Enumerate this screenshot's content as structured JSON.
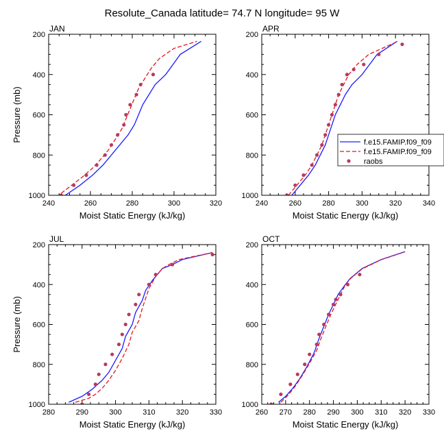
{
  "figure": {
    "title": "Resolute_Canada  latitude= 74.7 N longitude= 95 W"
  },
  "colors": {
    "model_a": "#1a1aff",
    "model_b": "#e0161d",
    "raobs": "#b83a5e"
  },
  "legend": {
    "entries": [
      "f.e15.FAMIP.f09_f09",
      "f.e15.FAMIP.f09_f09",
      "raobs"
    ],
    "placement": "right of APR panel"
  },
  "chart_data": [
    {
      "type": "line",
      "title": "JAN",
      "xlabel": "Moist Static Energy (kJ/kg)",
      "ylabel": "Pressure (mb)",
      "xlim": [
        240,
        320
      ],
      "ylim": [
        1000,
        200
      ],
      "y_inverted": true,
      "xticks": [
        240,
        260,
        280,
        300,
        320
      ],
      "yticks": [
        200,
        400,
        600,
        800,
        1000
      ],
      "series": [
        {
          "name": "f.e15.FAMIP.f09_f09",
          "style": "solid",
          "x": [
            248,
            255,
            261,
            266,
            270,
            274,
            278,
            281,
            283,
            285,
            288,
            291,
            296,
            303,
            313
          ],
          "y": [
            1000,
            950,
            900,
            850,
            800,
            750,
            700,
            650,
            600,
            550,
            500,
            450,
            400,
            300,
            235
          ]
        },
        {
          "name": "f.e15.FAMIP.f09_f09",
          "style": "dashed",
          "x": [
            246,
            251,
            256,
            261,
            265,
            269,
            272,
            275,
            277,
            279,
            281,
            283,
            286,
            289,
            293,
            300,
            311
          ],
          "y": [
            990,
            950,
            910,
            865,
            820,
            770,
            720,
            670,
            620,
            570,
            520,
            470,
            420,
            370,
            320,
            270,
            235
          ]
        },
        {
          "name": "raobs",
          "style": "markers",
          "x": [
            246,
            252,
            258,
            263,
            267,
            270,
            273,
            276,
            277,
            279,
            282,
            284,
            290
          ],
          "y": [
            1000,
            950,
            900,
            850,
            800,
            750,
            700,
            650,
            600,
            550,
            500,
            450,
            400
          ]
        }
      ]
    },
    {
      "type": "line",
      "title": "APR",
      "xlabel": "Moist Static Energy (kJ/kg)",
      "ylabel": "",
      "xlim": [
        240,
        340
      ],
      "ylim": [
        1000,
        200
      ],
      "y_inverted": true,
      "xticks": [
        240,
        260,
        280,
        300,
        320,
        340
      ],
      "yticks": [
        200,
        400,
        600,
        800,
        1000
      ],
      "series": [
        {
          "name": "f.e15.FAMIP.f09_f09",
          "style": "solid",
          "x": [
            258,
            263,
            268,
            272,
            275,
            278,
            280,
            282,
            284,
            287,
            290,
            294,
            300,
            309,
            321
          ],
          "y": [
            1000,
            950,
            900,
            850,
            800,
            750,
            700,
            650,
            600,
            550,
            500,
            450,
            400,
            300,
            235
          ]
        },
        {
          "name": "f.e15.FAMIP.f09_f09",
          "style": "dashed",
          "x": [
            256,
            261,
            266,
            270,
            273,
            276,
            278,
            280,
            282,
            284,
            286,
            289,
            292,
            297,
            304,
            312,
            320
          ],
          "y": [
            1000,
            950,
            900,
            850,
            800,
            750,
            700,
            650,
            600,
            550,
            500,
            450,
            400,
            350,
            300,
            270,
            240
          ]
        },
        {
          "name": "raobs",
          "style": "markers",
          "x": [
            255,
            260,
            265,
            270,
            273,
            276,
            278,
            280,
            282,
            284,
            286,
            288,
            291,
            295,
            301,
            310,
            324
          ],
          "y": [
            1000,
            950,
            900,
            850,
            800,
            750,
            700,
            650,
            600,
            550,
            500,
            450,
            400,
            375,
            350,
            300,
            250
          ]
        }
      ]
    },
    {
      "type": "line",
      "title": "JUL",
      "xlabel": "Moist Static Energy (kJ/kg)",
      "ylabel": "Pressure (mb)",
      "xlim": [
        280,
        330
      ],
      "ylim": [
        1000,
        200
      ],
      "y_inverted": true,
      "xticks": [
        280,
        290,
        300,
        310,
        320,
        330
      ],
      "yticks": [
        200,
        400,
        600,
        800,
        1000
      ],
      "series": [
        {
          "name": "f.e15.FAMIP.f09_f09",
          "style": "solid",
          "x": [
            286,
            290,
            293,
            296,
            298,
            300,
            302,
            303,
            305,
            306,
            308,
            309,
            311,
            313,
            314,
            317,
            320,
            329
          ],
          "y": [
            990,
            960,
            925,
            880,
            840,
            780,
            720,
            660,
            600,
            540,
            480,
            430,
            380,
            340,
            320,
            300,
            275,
            240
          ]
        },
        {
          "name": "f.e15.FAMIP.f09_f09",
          "style": "dashed",
          "x": [
            288,
            292,
            294,
            296,
            298,
            300,
            302,
            304,
            305,
            307,
            308,
            309,
            310,
            312,
            314,
            316,
            319,
            329
          ],
          "y": [
            990,
            970,
            950,
            920,
            880,
            830,
            770,
            700,
            640,
            580,
            520,
            470,
            420,
            360,
            320,
            300,
            275,
            240
          ]
        },
        {
          "name": "raobs",
          "style": "markers",
          "x": [
            290,
            292,
            294,
            295,
            297,
            299,
            301,
            302,
            303,
            304,
            306,
            307,
            310,
            312,
            317,
            329
          ],
          "y": [
            1000,
            950,
            900,
            850,
            800,
            750,
            700,
            650,
            600,
            550,
            500,
            450,
            400,
            350,
            300,
            250
          ]
        }
      ]
    },
    {
      "type": "line",
      "title": "OCT",
      "xlabel": "Moist Static Energy (kJ/kg)",
      "ylabel": "",
      "xlim": [
        260,
        330
      ],
      "ylim": [
        1000,
        200
      ],
      "y_inverted": true,
      "xticks": [
        260,
        270,
        280,
        290,
        300,
        310,
        320,
        330
      ],
      "yticks": [
        200,
        400,
        600,
        800,
        1000
      ],
      "series": [
        {
          "name": "f.e15.FAMIP.f09_f09",
          "style": "solid",
          "x": [
            267,
            270,
            273,
            276,
            279,
            282,
            284,
            286,
            288,
            290,
            292,
            295,
            297,
            299,
            302,
            310,
            320
          ],
          "y": [
            990,
            960,
            920,
            870,
            810,
            740,
            670,
            610,
            550,
            500,
            450,
            400,
            370,
            350,
            320,
            275,
            235
          ]
        },
        {
          "name": "f.e15.FAMIP.f09_f09",
          "style": "dashed",
          "x": [
            268,
            271,
            274,
            277,
            280,
            283,
            285,
            287,
            289,
            291,
            293,
            295,
            297,
            299,
            302,
            310,
            320
          ],
          "y": [
            990,
            955,
            910,
            855,
            795,
            730,
            665,
            605,
            548,
            498,
            450,
            402,
            372,
            352,
            322,
            276,
            236
          ]
        },
        {
          "name": "raobs",
          "style": "markers",
          "x": [
            264,
            268,
            272,
            275,
            278,
            280,
            283,
            284,
            286,
            288,
            290,
            291,
            293,
            296,
            301
          ],
          "y": [
            1000,
            950,
            900,
            850,
            800,
            750,
            700,
            650,
            600,
            550,
            500,
            475,
            450,
            400,
            350
          ]
        }
      ]
    }
  ]
}
